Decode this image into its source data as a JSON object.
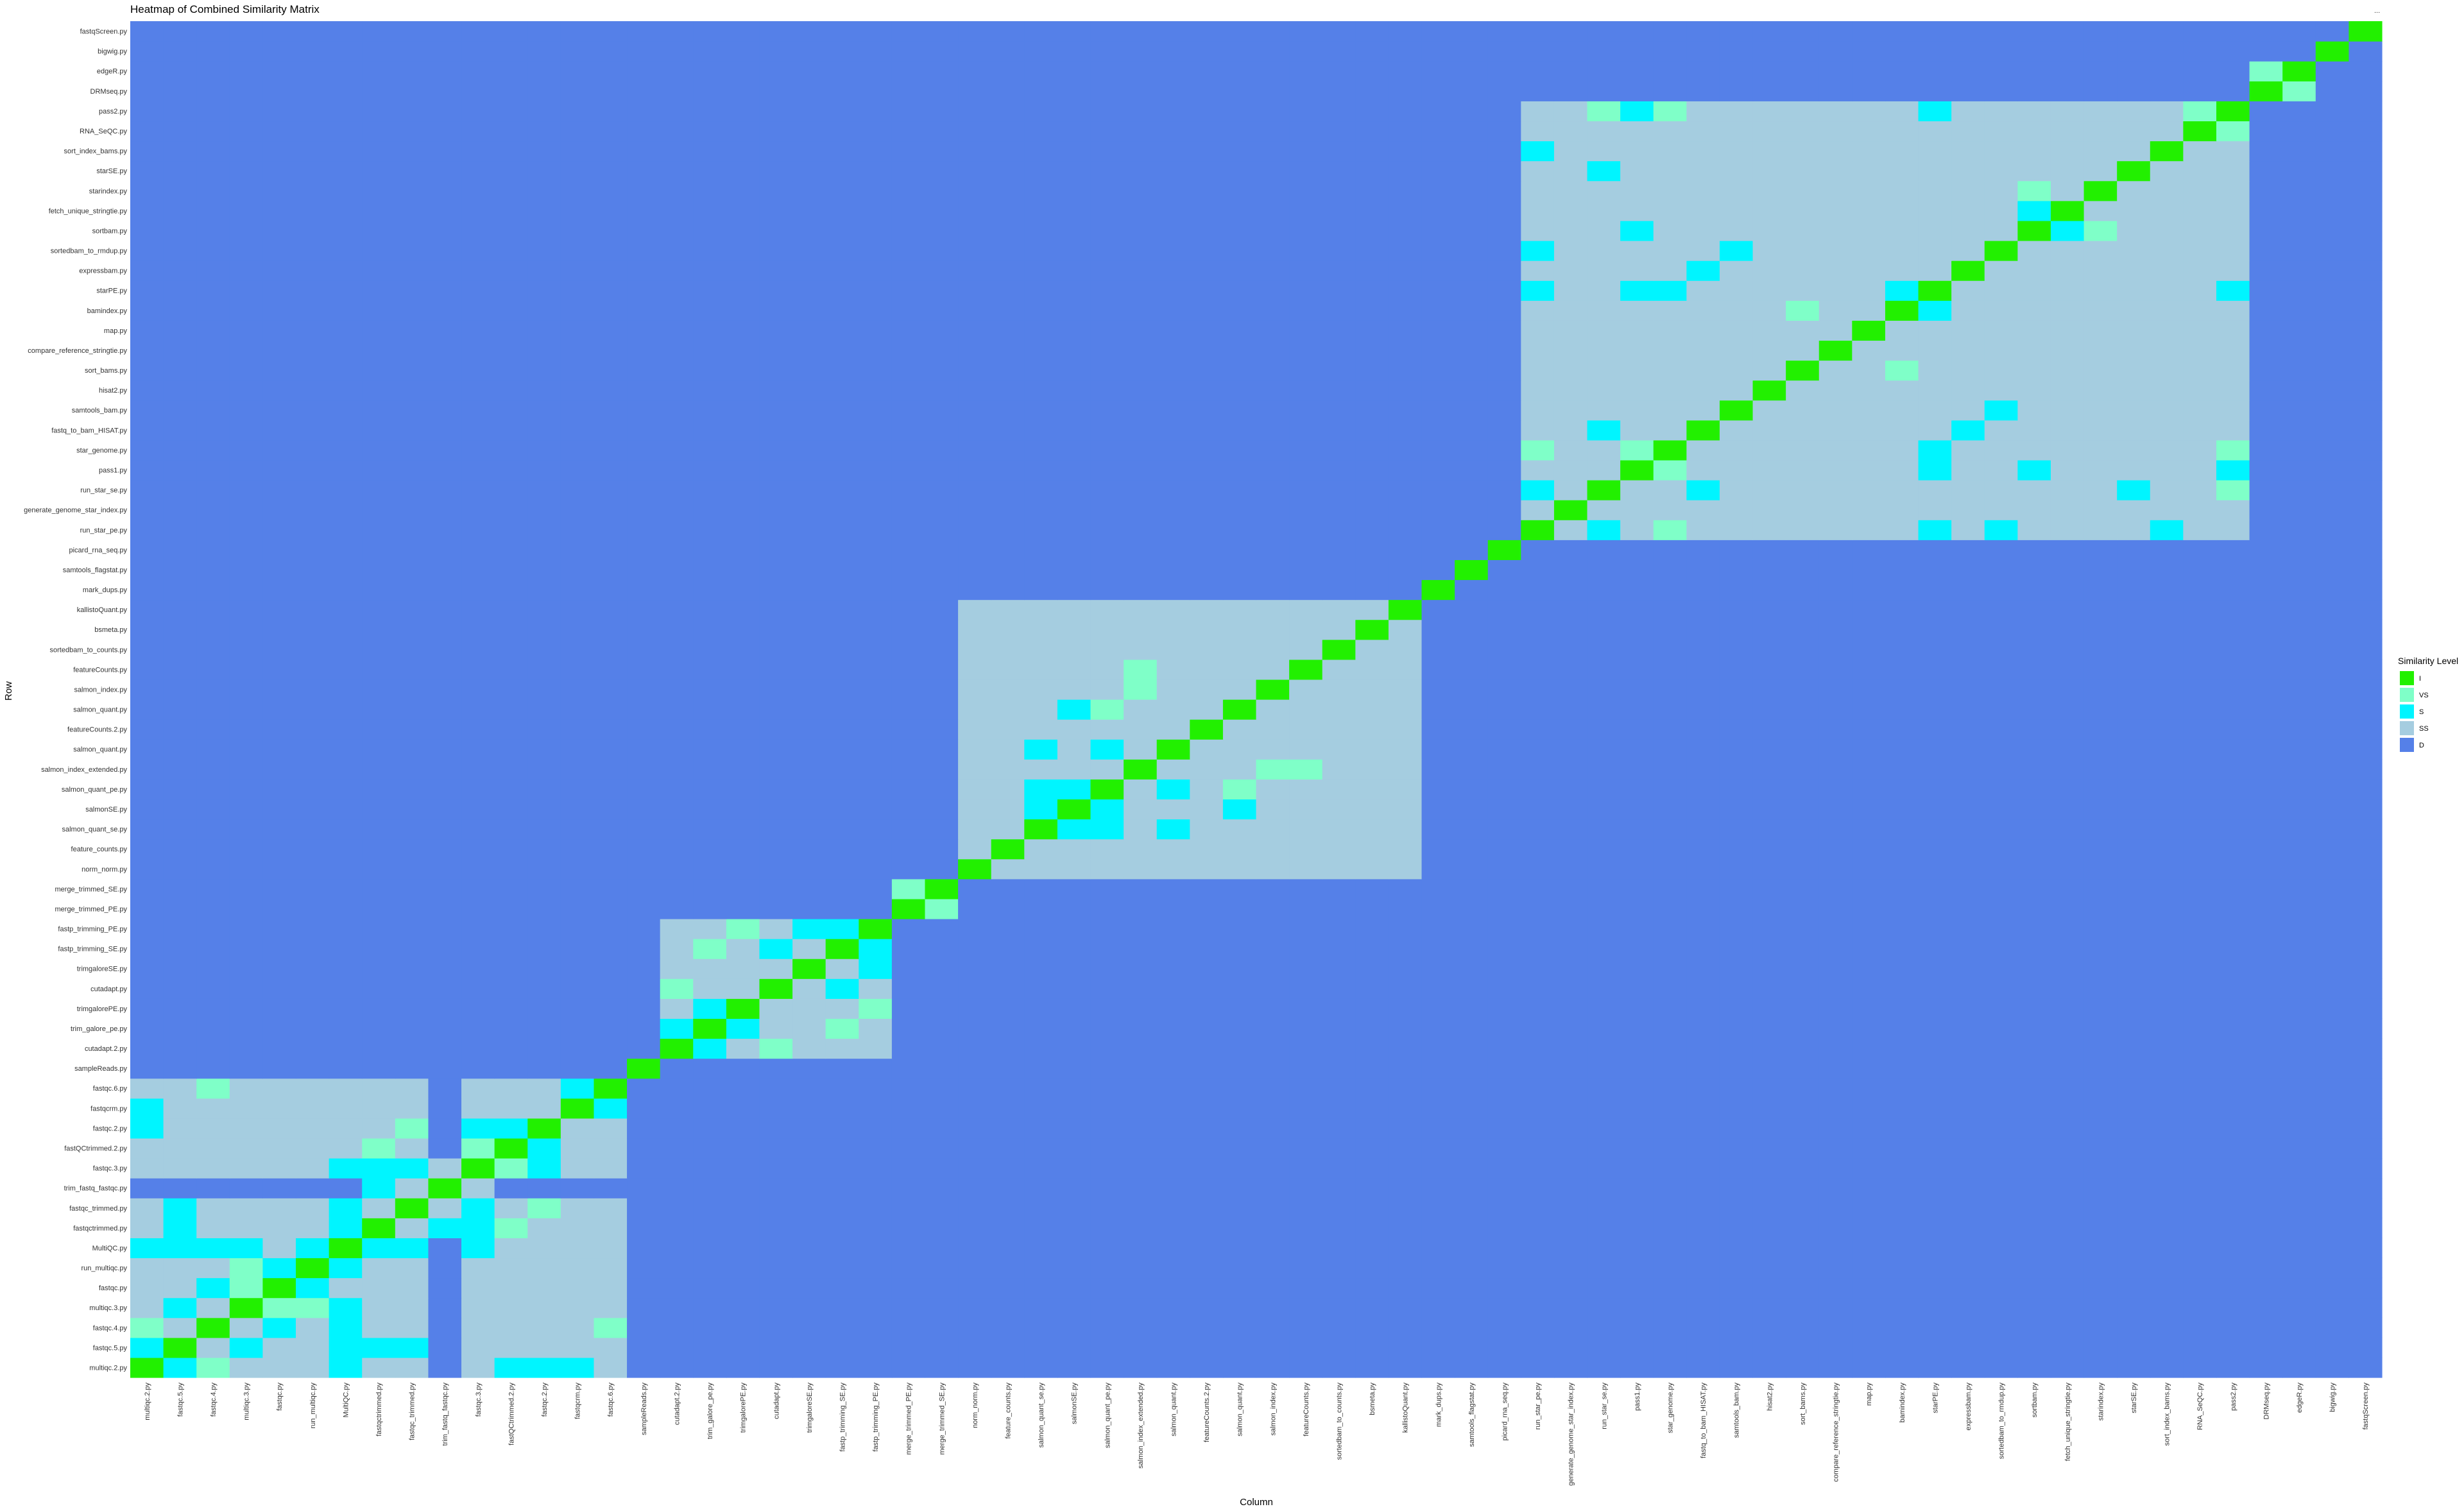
{
  "chart_data": {
    "type": "heatmap",
    "title": "Heatmap of Combined Similarity Matrix",
    "xlabel": "Column",
    "ylabel": "Row",
    "corner_mark": "...",
    "legend": {
      "title": "Similarity Level",
      "position": "right",
      "levels": [
        {
          "code": "I",
          "color": "#22f000"
        },
        {
          "code": "VS",
          "color": "#7fffc8"
        },
        {
          "code": "S",
          "color": "#00f5ff"
        },
        {
          "code": "SS",
          "color": "#a5cde0"
        },
        {
          "code": "D",
          "color": "#5580e8"
        }
      ]
    },
    "labels": [
      "multiqc.2.py",
      "fastqc.5.py",
      "fastqc.4.py",
      "multiqc.3.py",
      "fastqc.py",
      "run_multiqc.py",
      "MultiQC.py",
      "fastqctrimmed.py",
      "fastqc_trimmed.py",
      "trim_fastq_fastqc.py",
      "fastqc.3.py",
      "fastQCtrimmed.2.py",
      "fastqc.2.py",
      "fastqcrm.py",
      "fastqc.6.py",
      "sampleReads.py",
      "cutadapt.2.py",
      "trim_galore_pe.py",
      "trimgalorePE.py",
      "cutadapt.py",
      "trimgaloreSE.py",
      "fastp_trimming_SE.py",
      "fastp_trimming_PE.py",
      "merge_trimmed_PE.py",
      "merge_trimmed_SE.py",
      "norm_norm.py",
      "feature_counts.py",
      "salmon_quant_se.py",
      "salmonSE.py",
      "salmon_quant_pe.py",
      "salmon_index_extended.py",
      "salmon_quant.py",
      "featureCounts.2.py",
      "salmon_quant.py",
      "salmon_index.py",
      "featureCounts.py",
      "sortedbam_to_counts.py",
      "bsmeta.py",
      "kallistoQuant.py",
      "mark_dups.py",
      "samtools_flagstat.py",
      "picard_rna_seq.py",
      "run_star_pe.py",
      "generate_genome_star_index.py",
      "run_star_se.py",
      "pass1.py",
      "star_genome.py",
      "fastq_to_bam_HISAT.py",
      "samtools_bam.py",
      "hisat2.py",
      "sort_bams.py",
      "compare_reference_stringtie.py",
      "map.py",
      "bamindex.py",
      "starPE.py",
      "expressbam.py",
      "sortedbam_to_rmdup.py",
      "sortbam.py",
      "fetch_unique_stringtie.py",
      "starindex.py",
      "starSE.py",
      "sort_index_bams.py",
      "RNA_SeQC.py",
      "pass2.py",
      "DRMseq.py",
      "edgeR.py",
      "bigwig.py",
      "fastqScreen.py"
    ],
    "diagonal": "I",
    "default": "D",
    "cells": [
      [
        "S",
        0,
        11
      ],
      [
        "S",
        0,
        1
      ],
      [
        "S",
        1,
        0
      ],
      [
        "S",
        0,
        6
      ],
      [
        "S",
        6,
        0
      ],
      [
        "S",
        0,
        12
      ],
      [
        "S",
        12,
        0
      ],
      [
        "S",
        0,
        13
      ],
      [
        "S",
        13,
        0
      ],
      [
        "S",
        1,
        3
      ],
      [
        "S",
        3,
        1
      ],
      [
        "S",
        1,
        6
      ],
      [
        "S",
        6,
        1
      ],
      [
        "S",
        1,
        7
      ],
      [
        "S",
        7,
        1
      ],
      [
        "S",
        1,
        8
      ],
      [
        "S",
        8,
        1
      ],
      [
        "S",
        2,
        4
      ],
      [
        "S",
        4,
        2
      ],
      [
        "S",
        2,
        6
      ],
      [
        "S",
        6,
        2
      ],
      [
        "S",
        3,
        6
      ],
      [
        "S",
        6,
        3
      ],
      [
        "S",
        4,
        5
      ],
      [
        "S",
        5,
        4
      ],
      [
        "S",
        5,
        6
      ],
      [
        "S",
        6,
        5
      ],
      [
        "S",
        6,
        7
      ],
      [
        "S",
        7,
        6
      ],
      [
        "S",
        6,
        8
      ],
      [
        "S",
        8,
        6
      ],
      [
        "S",
        6,
        10
      ],
      [
        "S",
        10,
        6
      ],
      [
        "S",
        7,
        9
      ],
      [
        "S",
        9,
        7
      ],
      [
        "S",
        7,
        10
      ],
      [
        "S",
        10,
        7
      ],
      [
        "S",
        8,
        10
      ],
      [
        "S",
        10,
        8
      ],
      [
        "S",
        11,
        12
      ],
      [
        "S",
        12,
        11
      ],
      [
        "S",
        13,
        14
      ],
      [
        "S",
        14,
        13
      ],
      [
        "S",
        10,
        12
      ],
      [
        "S",
        12,
        10
      ],
      [
        "VS",
        2,
        14
      ],
      [
        "VS",
        14,
        2
      ],
      [
        "VS",
        3,
        5
      ],
      [
        "VS",
        5,
        3
      ],
      [
        "VS",
        3,
        4
      ],
      [
        "VS",
        4,
        3
      ],
      [
        "VS",
        7,
        11
      ],
      [
        "VS",
        11,
        7
      ],
      [
        "VS",
        0,
        2
      ],
      [
        "VS",
        2,
        0
      ],
      [
        "VS",
        8,
        12
      ],
      [
        "VS",
        12,
        8
      ],
      [
        "VS",
        10,
        11
      ],
      [
        "VS",
        11,
        10
      ],
      [
        "D",
        9,
        0
      ],
      [
        "D",
        9,
        1
      ],
      [
        "D",
        9,
        2
      ],
      [
        "D",
        9,
        3
      ],
      [
        "D",
        9,
        4
      ],
      [
        "D",
        9,
        5
      ],
      [
        "D",
        9,
        6
      ],
      [
        "D",
        9,
        11
      ],
      [
        "D",
        9,
        12
      ],
      [
        "D",
        9,
        13
      ],
      [
        "D",
        9,
        14
      ],
      [
        "D",
        0,
        9
      ],
      [
        "D",
        1,
        9
      ],
      [
        "D",
        2,
        9
      ],
      [
        "D",
        3,
        9
      ],
      [
        "D",
        4,
        9
      ],
      [
        "D",
        5,
        9
      ],
      [
        "D",
        6,
        9
      ],
      [
        "D",
        11,
        9
      ],
      [
        "D",
        12,
        9
      ],
      [
        "D",
        13,
        9
      ],
      [
        "D",
        14,
        9
      ],
      [
        "S",
        17,
        18
      ],
      [
        "S",
        18,
        17
      ],
      [
        "S",
        16,
        17
      ],
      [
        "S",
        17,
        16
      ],
      [
        "S",
        19,
        21
      ],
      [
        "S",
        21,
        19
      ],
      [
        "S",
        20,
        22
      ],
      [
        "S",
        22,
        20
      ],
      [
        "S",
        21,
        22
      ],
      [
        "S",
        22,
        21
      ],
      [
        "VS",
        16,
        19
      ],
      [
        "VS",
        19,
        16
      ],
      [
        "VS",
        18,
        22
      ],
      [
        "VS",
        22,
        18
      ],
      [
        "VS",
        23,
        24
      ],
      [
        "VS",
        24,
        23
      ],
      [
        "VS",
        17,
        21
      ],
      [
        "VS",
        21,
        17
      ],
      [
        "S",
        27,
        28
      ],
      [
        "S",
        28,
        27
      ],
      [
        "S",
        27,
        29
      ],
      [
        "S",
        29,
        27
      ],
      [
        "S",
        28,
        29
      ],
      [
        "S",
        29,
        28
      ],
      [
        "S",
        27,
        31
      ],
      [
        "S",
        31,
        27
      ],
      [
        "S",
        28,
        33
      ],
      [
        "S",
        33,
        28
      ],
      [
        "S",
        29,
        31
      ],
      [
        "S",
        31,
        29
      ],
      [
        "VS",
        29,
        33
      ],
      [
        "VS",
        33,
        29
      ],
      [
        "VS",
        30,
        34
      ],
      [
        "VS",
        34,
        30
      ],
      [
        "VS",
        30,
        35
      ],
      [
        "VS",
        35,
        30
      ],
      [
        "S",
        42,
        44
      ],
      [
        "S",
        44,
        42
      ],
      [
        "S",
        42,
        54
      ],
      [
        "S",
        54,
        42
      ],
      [
        "S",
        42,
        56
      ],
      [
        "S",
        56,
        42
      ],
      [
        "S",
        44,
        47
      ],
      [
        "S",
        47,
        44
      ],
      [
        "S",
        45,
        54
      ],
      [
        "S",
        54,
        45
      ],
      [
        "S",
        46,
        54
      ],
      [
        "S",
        54,
        46
      ],
      [
        "S",
        44,
        60
      ],
      [
        "S",
        60,
        44
      ],
      [
        "S",
        42,
        61
      ],
      [
        "S",
        61,
        42
      ],
      [
        "S",
        45,
        57
      ],
      [
        "S",
        57,
        45
      ],
      [
        "S",
        47,
        55
      ],
      [
        "S",
        55,
        47
      ],
      [
        "S",
        48,
        56
      ],
      [
        "S",
        56,
        48
      ],
      [
        "S",
        53,
        54
      ],
      [
        "S",
        54,
        53
      ],
      [
        "S",
        54,
        63
      ],
      [
        "S",
        63,
        54
      ],
      [
        "S",
        57,
        58
      ],
      [
        "S",
        58,
        57
      ],
      [
        "S",
        45,
        63
      ],
      [
        "S",
        63,
        45
      ],
      [
        "VS",
        44,
        63
      ],
      [
        "VS",
        63,
        44
      ],
      [
        "VS",
        45,
        46
      ],
      [
        "VS",
        46,
        45
      ],
      [
        "VS",
        42,
        46
      ],
      [
        "VS",
        46,
        42
      ],
      [
        "VS",
        57,
        59
      ],
      [
        "VS",
        59,
        57
      ],
      [
        "VS",
        64,
        65
      ],
      [
        "VS",
        65,
        64
      ],
      [
        "VS",
        62,
        63
      ],
      [
        "VS",
        63,
        62
      ],
      [
        "VS",
        50,
        53
      ],
      [
        "VS",
        53,
        50
      ],
      [
        "VS",
        46,
        63
      ],
      [
        "VS",
        63,
        46
      ]
    ],
    "ss_blocks": [
      [
        0,
        14,
        0,
        14
      ],
      [
        16,
        22,
        16,
        22
      ],
      [
        25,
        38,
        25,
        38
      ],
      [
        42,
        63,
        42,
        63
      ]
    ]
  }
}
